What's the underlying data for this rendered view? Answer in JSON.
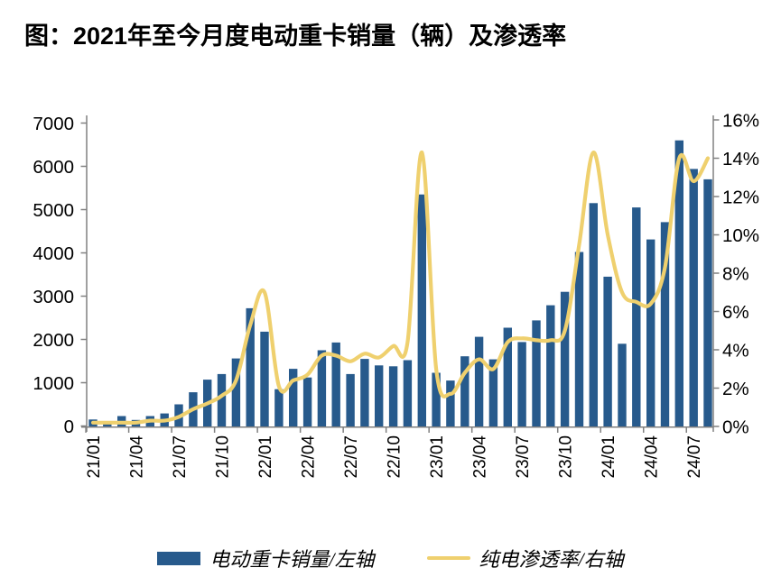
{
  "page": {
    "title": "图：2021年至今月度电动重卡销量（辆）及渗透率"
  },
  "chart_data": {
    "type": "combo-bar-line",
    "categories": [
      "21/01",
      "21/02",
      "21/03",
      "21/04",
      "21/05",
      "21/06",
      "21/07",
      "21/08",
      "21/09",
      "21/10",
      "21/11",
      "21/12",
      "22/01",
      "22/02",
      "22/03",
      "22/04",
      "22/05",
      "22/06",
      "22/07",
      "22/08",
      "22/09",
      "22/10",
      "22/11",
      "22/12",
      "23/01",
      "23/02",
      "23/03",
      "23/04",
      "23/05",
      "23/06",
      "23/07",
      "23/08",
      "23/09",
      "23/10",
      "23/11",
      "23/12",
      "24/01",
      "24/02",
      "24/03",
      "24/04",
      "24/05",
      "24/06",
      "24/07",
      "24/08"
    ],
    "x_tick_labels": [
      "21/01",
      "21/04",
      "21/07",
      "21/10",
      "22/01",
      "22/04",
      "22/07",
      "22/10",
      "23/01",
      "23/04",
      "23/07",
      "23/10",
      "24/01",
      "24/04",
      "24/07"
    ],
    "bar_series": {
      "name": "电动重卡销量/左轴",
      "axis": "left",
      "color": "#275A8C",
      "values": [
        150,
        70,
        230,
        140,
        230,
        290,
        500,
        780,
        1070,
        1200,
        1560,
        2720,
        2180,
        850,
        1320,
        1120,
        1750,
        1930,
        1200,
        1550,
        1400,
        1380,
        1520,
        5350,
        1230,
        1050,
        1610,
        2060,
        1540,
        2270,
        1940,
        2440,
        2790,
        3100,
        4020,
        5150,
        3450,
        1900,
        5050,
        4310,
        4710,
        6600,
        5940,
        5700
      ]
    },
    "line_series": {
      "name": "纯电渗透率/右轴",
      "axis": "right",
      "unit": "%",
      "color": "#EFD06E",
      "values": [
        0.2,
        0.2,
        0.2,
        0.2,
        0.3,
        0.3,
        0.5,
        0.9,
        1.2,
        1.6,
        2.4,
        5.3,
        7.0,
        2.1,
        2.4,
        2.7,
        3.7,
        3.7,
        3.4,
        3.8,
        3.6,
        4.2,
        4.4,
        14.3,
        3.0,
        1.7,
        2.8,
        3.5,
        3.0,
        4.4,
        4.6,
        4.5,
        4.5,
        5.0,
        9.5,
        14.3,
        10.0,
        7.0,
        6.5,
        6.4,
        8.3,
        14.0,
        12.8,
        14.0
      ]
    },
    "left_axis": {
      "min": 0,
      "max": 7000,
      "step": 1000,
      "tick_labels": [
        "0",
        "1000",
        "2000",
        "3000",
        "4000",
        "5000",
        "6000",
        "7000"
      ]
    },
    "right_axis": {
      "min": 0,
      "max": 16,
      "step": 2,
      "tick_labels": [
        "0%",
        "2%",
        "4%",
        "6%",
        "8%",
        "10%",
        "12%",
        "14%",
        "16%"
      ]
    },
    "grid": "off",
    "legend_position": "bottom",
    "legend": [
      {
        "label": "电动重卡销量/左轴",
        "swatch": "bar"
      },
      {
        "label": "纯电渗透率/右轴",
        "swatch": "line"
      }
    ]
  }
}
